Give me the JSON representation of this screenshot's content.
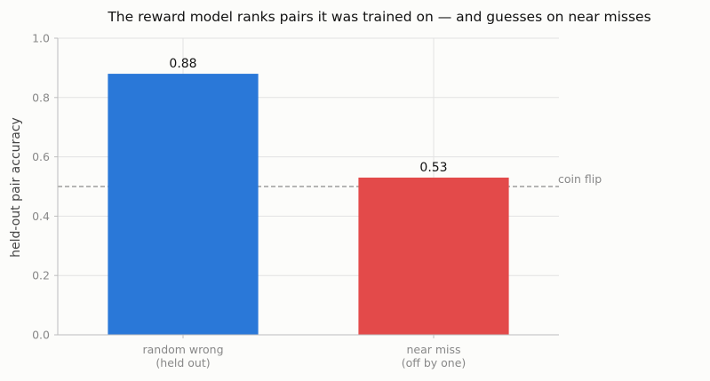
{
  "chart_data": {
    "type": "bar",
    "title": "The reward model ranks pairs it was trained on — and guesses on near misses",
    "ylabel": "held-out pair accuracy",
    "xlabel": "",
    "categories": [
      [
        "random wrong",
        "(held out)"
      ],
      [
        "near miss",
        "(off by one)"
      ]
    ],
    "values": [
      0.88,
      0.53
    ],
    "value_labels": [
      "0.88",
      "0.53"
    ],
    "colors": [
      "#2a78d8",
      "#e34a4a"
    ],
    "ylim": [
      0,
      1
    ],
    "yticks": [
      0,
      0.2,
      0.4,
      0.6,
      0.8,
      1
    ],
    "ytick_labels": [
      "0.0",
      "0.2",
      "0.4",
      "0.6",
      "0.8",
      "1.0"
    ],
    "grid": true,
    "reference_line": {
      "value": 0.5,
      "label": "coin flip",
      "color": "#8a8a8a"
    }
  }
}
